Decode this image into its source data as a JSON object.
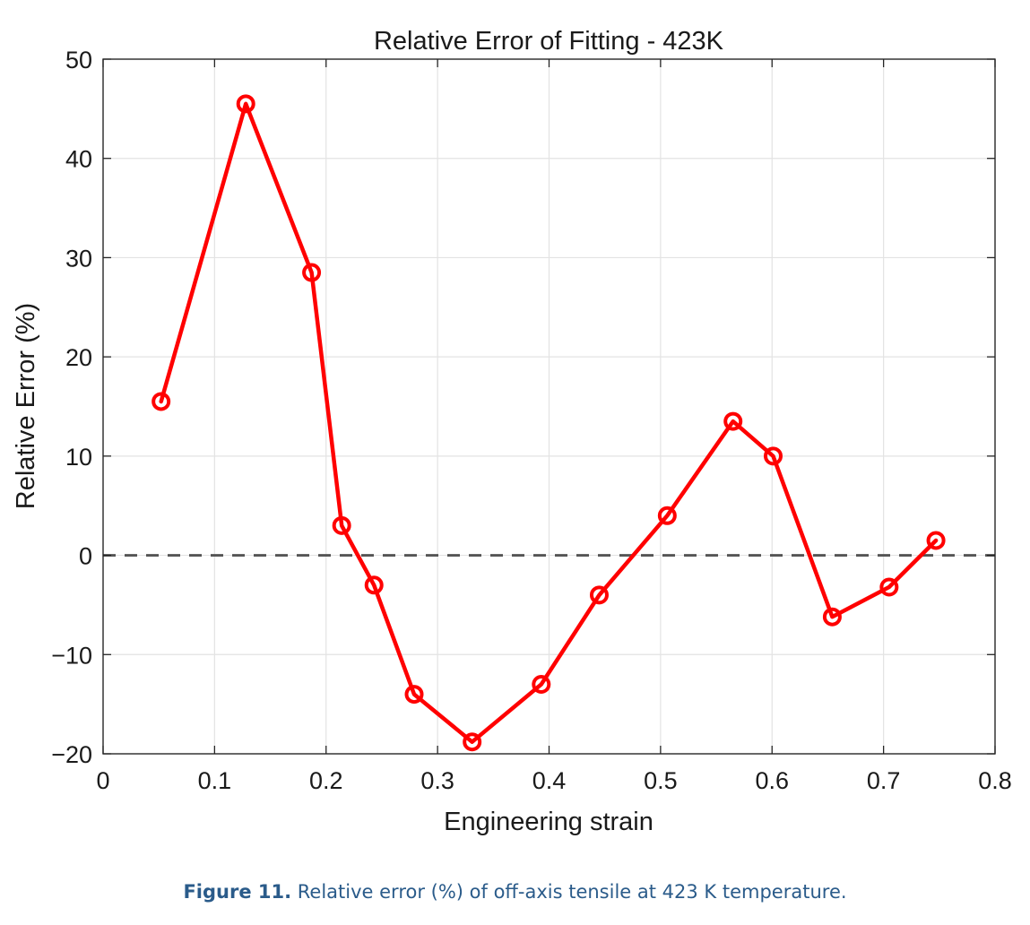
{
  "chart_data": {
    "type": "line",
    "title": "Relative Error of Fitting - 423K",
    "xlabel": "Engineering strain",
    "ylabel": "Relative Error (%)",
    "xlim": [
      0,
      0.8
    ],
    "ylim": [
      -20,
      50
    ],
    "xticks": [
      "0",
      "0.1",
      "0.2",
      "0.3",
      "0.4",
      "0.5",
      "0.6",
      "0.7",
      "0.8"
    ],
    "yticks": [
      "−20",
      "−10",
      "0",
      "10",
      "20",
      "30",
      "40",
      "50"
    ],
    "grid": true,
    "reference_line": {
      "y": 0,
      "style": "dashed",
      "color": "#555555"
    },
    "series": [
      {
        "color": "#ff0000",
        "marker": "circle",
        "x": [
          0.052,
          0.128,
          0.187,
          0.214,
          0.243,
          0.279,
          0.331,
          0.393,
          0.445,
          0.506,
          0.565,
          0.601,
          0.654,
          0.705,
          0.747
        ],
        "y": [
          15.5,
          45.5,
          28.5,
          3.0,
          -3.0,
          -14.0,
          -18.8,
          -13.0,
          -4.0,
          4.0,
          13.5,
          10.0,
          -6.2,
          -3.2,
          1.5
        ]
      }
    ]
  },
  "caption": {
    "label": "Figure 11.",
    "text": " Relative error (%) of off-axis tensile at 423 K temperature."
  },
  "colors": {
    "caption": "#2a5b8a",
    "axis": "#262626",
    "grid": "#e3e3e3"
  }
}
